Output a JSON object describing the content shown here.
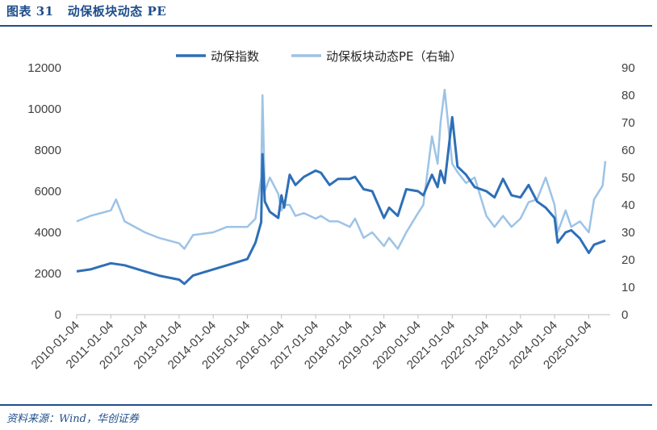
{
  "header": {
    "title": "图表 31   动保板块动态 PE"
  },
  "footer": {
    "source": "资料来源：Wind，华创证券"
  },
  "colors": {
    "accent": "#1f4e8c",
    "index_line": "#2e6fb7",
    "pe_line": "#9dc3e6"
  },
  "chart_data": {
    "type": "line",
    "title": "",
    "xlabel": "",
    "ylabel": "",
    "ylabel_right": "",
    "legend_position": "top",
    "grid": false,
    "ylim": [
      0,
      12000
    ],
    "ylim_right": [
      0,
      90
    ],
    "yticks": [
      "0",
      "2000",
      "4000",
      "6000",
      "8000",
      "10000",
      "12000"
    ],
    "yticks_right": [
      "0",
      "10",
      "20",
      "30",
      "40",
      "50",
      "60",
      "70",
      "80",
      "90"
    ],
    "xticks": [
      "2010-01-04",
      "2011-01-04",
      "2012-01-04",
      "2013-01-04",
      "2014-01-04",
      "2015-01-04",
      "2016-01-04",
      "2017-01-04",
      "2018-01-04",
      "2019-01-04",
      "2020-01-04",
      "2021-01-04",
      "2022-01-04",
      "2023-01-04",
      "2024-01-04",
      "2025-01-04"
    ],
    "x_start": "2010-01-04",
    "x_end": "2025-06-30",
    "series": [
      {
        "name": "动保指数",
        "axis": "left",
        "x": [
          "2010-01-04",
          "2010-06-01",
          "2011-01-04",
          "2011-06-01",
          "2012-01-04",
          "2012-06-01",
          "2013-01-04",
          "2013-03-01",
          "2013-06-01",
          "2014-01-04",
          "2014-06-01",
          "2015-01-04",
          "2015-04-01",
          "2015-06-01",
          "2015-06-15",
          "2015-07-10",
          "2015-09-01",
          "2015-12-01",
          "2016-01-04",
          "2016-02-01",
          "2016-04-01",
          "2016-06-01",
          "2016-09-01",
          "2017-01-04",
          "2017-03-01",
          "2017-06-01",
          "2017-09-01",
          "2018-01-04",
          "2018-03-01",
          "2018-06-01",
          "2018-09-01",
          "2019-01-04",
          "2019-03-01",
          "2019-06-01",
          "2019-09-01",
          "2020-01-04",
          "2020-03-01",
          "2020-06-01",
          "2020-08-01",
          "2020-09-01",
          "2020-10-15",
          "2021-01-04",
          "2021-03-01",
          "2021-06-01",
          "2021-09-01",
          "2022-01-04",
          "2022-04-01",
          "2022-07-01",
          "2022-10-01",
          "2023-01-04",
          "2023-04-01",
          "2023-07-01",
          "2023-10-01",
          "2024-01-04",
          "2024-02-06",
          "2024-05-01",
          "2024-07-01",
          "2024-10-01",
          "2025-01-04",
          "2025-03-01",
          "2025-06-30"
        ],
        "values": [
          2100,
          2200,
          2500,
          2400,
          2100,
          1900,
          1700,
          1500,
          1900,
          2200,
          2400,
          2700,
          3500,
          4500,
          7800,
          5500,
          5000,
          4700,
          5800,
          5200,
          6800,
          6300,
          6700,
          7000,
          6900,
          6300,
          6600,
          6600,
          6700,
          6100,
          6000,
          4700,
          5200,
          4800,
          6100,
          6000,
          5800,
          6800,
          6200,
          7000,
          6400,
          9600,
          7200,
          6800,
          6200,
          6000,
          5700,
          6600,
          5800,
          5700,
          6300,
          5500,
          5200,
          4700,
          3500,
          4000,
          4100,
          3700,
          3000,
          3400,
          3600
        ]
      },
      {
        "name": "动保板块动态PE（右轴）",
        "axis": "right",
        "x": [
          "2010-01-04",
          "2010-06-01",
          "2011-01-04",
          "2011-03-01",
          "2011-06-01",
          "2012-01-04",
          "2012-06-01",
          "2013-01-04",
          "2013-03-01",
          "2013-06-01",
          "2014-01-04",
          "2014-06-01",
          "2015-01-04",
          "2015-04-01",
          "2015-06-01",
          "2015-06-15",
          "2015-07-10",
          "2015-09-01",
          "2015-12-01",
          "2016-01-04",
          "2016-02-01",
          "2016-04-01",
          "2016-06-01",
          "2016-09-01",
          "2017-01-04",
          "2017-03-01",
          "2017-06-01",
          "2017-09-01",
          "2018-01-04",
          "2018-03-01",
          "2018-06-01",
          "2018-09-01",
          "2019-01-04",
          "2019-03-01",
          "2019-06-01",
          "2019-09-01",
          "2020-01-04",
          "2020-03-01",
          "2020-06-01",
          "2020-08-01",
          "2020-09-01",
          "2020-10-15",
          "2021-01-04",
          "2021-03-01",
          "2021-06-01",
          "2021-09-01",
          "2022-01-04",
          "2022-04-01",
          "2022-07-01",
          "2022-10-01",
          "2023-01-04",
          "2023-04-01",
          "2023-07-01",
          "2023-10-01",
          "2024-01-04",
          "2024-02-06",
          "2024-05-01",
          "2024-07-01",
          "2024-10-01",
          "2025-01-04",
          "2025-03-01",
          "2025-06-01",
          "2025-06-30"
        ],
        "values": [
          34,
          36,
          38,
          42,
          34,
          30,
          28,
          26,
          24,
          29,
          30,
          32,
          32,
          35,
          50,
          80,
          45,
          50,
          44,
          38,
          40,
          40,
          36,
          37,
          35,
          36,
          34,
          34,
          32,
          35,
          28,
          30,
          25,
          28,
          24,
          30,
          37,
          40,
          65,
          55,
          70,
          82,
          55,
          52,
          48,
          50,
          36,
          32,
          36,
          32,
          35,
          41,
          42,
          50,
          40,
          30,
          38,
          32,
          34,
          30,
          42,
          47,
          56
        ]
      }
    ]
  }
}
